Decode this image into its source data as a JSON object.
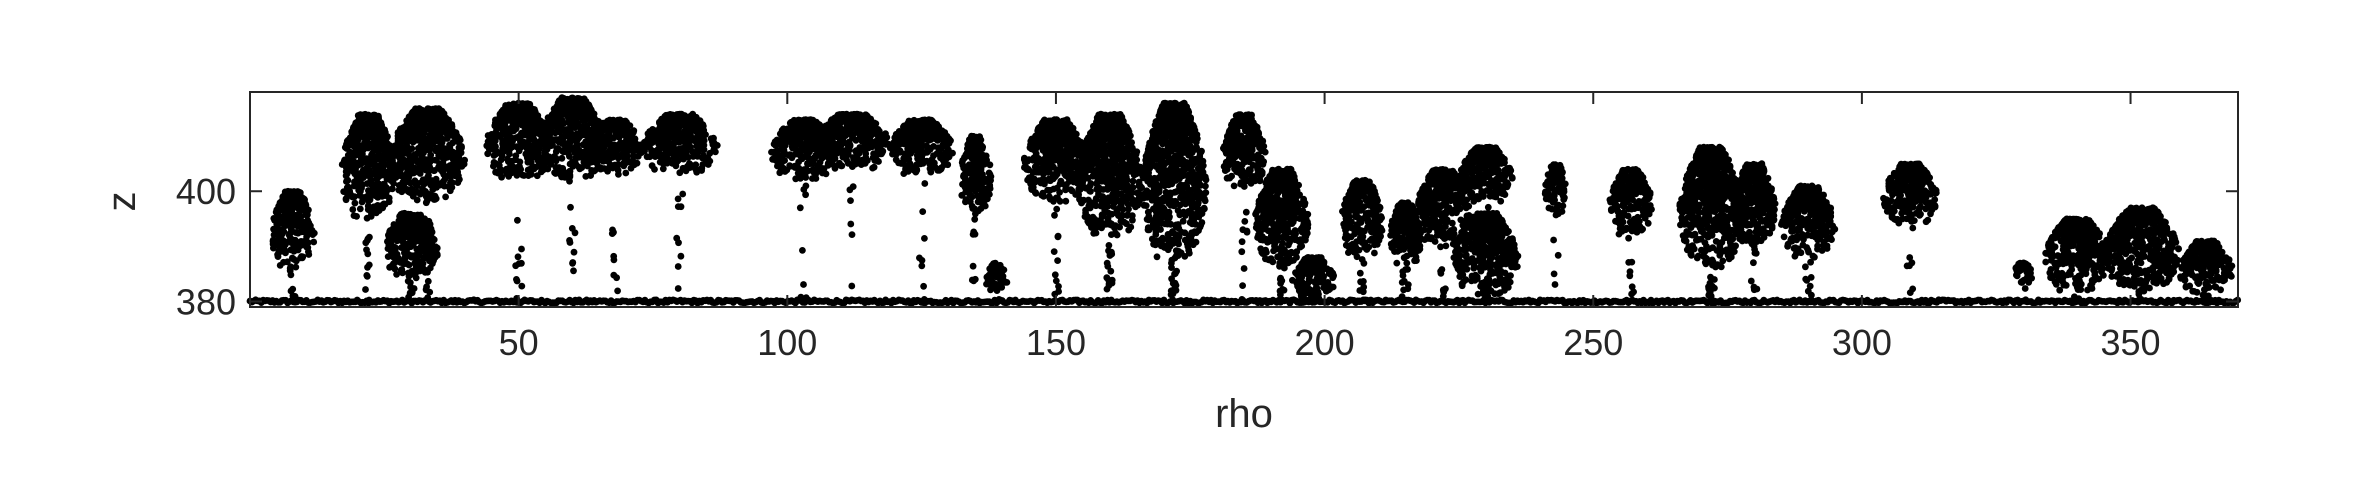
{
  "chart_data": {
    "type": "scatter",
    "title": "",
    "xlabel": "rho",
    "ylabel": "z",
    "xlim": [
      0,
      370
    ],
    "ylim": [
      379,
      418
    ],
    "xticks": [
      50,
      100,
      150,
      200,
      250,
      300,
      350
    ],
    "yticks": [
      380,
      400
    ],
    "grid": false,
    "legend": "none",
    "marker_color": "#000000",
    "ground_level": 380,
    "point_clusters": [
      {
        "x_center": 8,
        "x_spread": 4,
        "z_min": 386,
        "z_max": 400
      },
      {
        "x_center": 22,
        "x_spread": 5,
        "z_min": 395,
        "z_max": 414
      },
      {
        "x_center": 30,
        "x_spread": 5,
        "z_min": 384,
        "z_max": 396
      },
      {
        "x_center": 33,
        "x_spread": 7,
        "z_min": 398,
        "z_max": 415
      },
      {
        "x_center": 50,
        "x_spread": 6,
        "z_min": 402,
        "z_max": 416
      },
      {
        "x_center": 60,
        "x_spread": 6,
        "z_min": 402,
        "z_max": 417
      },
      {
        "x_center": 68,
        "x_spread": 5,
        "z_min": 403,
        "z_max": 413
      },
      {
        "x_center": 80,
        "x_spread": 7,
        "z_min": 403,
        "z_max": 414
      },
      {
        "x_center": 103,
        "x_spread": 6,
        "z_min": 402,
        "z_max": 413
      },
      {
        "x_center": 112,
        "x_spread": 7,
        "z_min": 404,
        "z_max": 414
      },
      {
        "x_center": 125,
        "x_spread": 6,
        "z_min": 403,
        "z_max": 413
      },
      {
        "x_center": 135,
        "x_spread": 3,
        "z_min": 396,
        "z_max": 410
      },
      {
        "x_center": 139,
        "x_spread": 2,
        "z_min": 381,
        "z_max": 387
      },
      {
        "x_center": 150,
        "x_spread": 6,
        "z_min": 398,
        "z_max": 413
      },
      {
        "x_center": 160,
        "x_spread": 6,
        "z_min": 392,
        "z_max": 414
      },
      {
        "x_center": 172,
        "x_spread": 6,
        "z_min": 388,
        "z_max": 416
      },
      {
        "x_center": 185,
        "x_spread": 4,
        "z_min": 400,
        "z_max": 414
      },
      {
        "x_center": 192,
        "x_spread": 5,
        "z_min": 386,
        "z_max": 404
      },
      {
        "x_center": 198,
        "x_spread": 4,
        "z_min": 380,
        "z_max": 388
      },
      {
        "x_center": 207,
        "x_spread": 4,
        "z_min": 388,
        "z_max": 402
      },
      {
        "x_center": 215,
        "x_spread": 3,
        "z_min": 386,
        "z_max": 398
      },
      {
        "x_center": 222,
        "x_spread": 5,
        "z_min": 390,
        "z_max": 404
      },
      {
        "x_center": 230,
        "x_spread": 6,
        "z_min": 381,
        "z_max": 396
      },
      {
        "x_center": 230,
        "x_spread": 5,
        "z_min": 398,
        "z_max": 408
      },
      {
        "x_center": 243,
        "x_spread": 2,
        "z_min": 396,
        "z_max": 405
      },
      {
        "x_center": 257,
        "x_spread": 4,
        "z_min": 392,
        "z_max": 404
      },
      {
        "x_center": 272,
        "x_spread": 6,
        "z_min": 386,
        "z_max": 408
      },
      {
        "x_center": 280,
        "x_spread": 4,
        "z_min": 390,
        "z_max": 405
      },
      {
        "x_center": 290,
        "x_spread": 5,
        "z_min": 388,
        "z_max": 401
      },
      {
        "x_center": 309,
        "x_spread": 5,
        "z_min": 394,
        "z_max": 405
      },
      {
        "x_center": 330,
        "x_spread": 2,
        "z_min": 383,
        "z_max": 387
      },
      {
        "x_center": 340,
        "x_spread": 6,
        "z_min": 382,
        "z_max": 395
      },
      {
        "x_center": 352,
        "x_spread": 7,
        "z_min": 382,
        "z_max": 397
      },
      {
        "x_center": 364,
        "x_spread": 5,
        "z_min": 381,
        "z_max": 391
      }
    ]
  }
}
